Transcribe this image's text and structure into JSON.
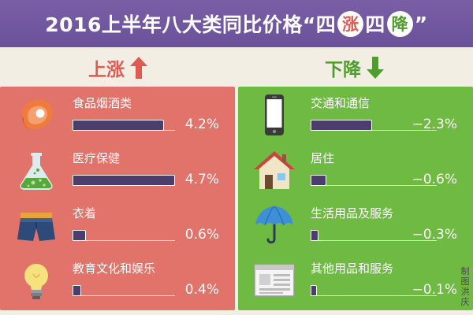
{
  "header": {
    "title_plain": "2016上半年八大类同比价格“四",
    "title_up_char": "涨",
    "title_mid": "四",
    "title_down_char": "降",
    "title_end": "”"
  },
  "sections": {
    "up_label": "上涨",
    "down_label": "下降"
  },
  "colors": {
    "up": "#e2736b",
    "down": "#6fba43",
    "bar": "#4b3e6c",
    "header": "#6a519a"
  },
  "chart_data": {
    "type": "bar",
    "title": "2016上半年八大类同比价格“四涨四降”",
    "unit": "%",
    "groups": [
      {
        "name": "上涨",
        "categories": [
          "食品烟酒类",
          "医疗保健",
          "衣着",
          "教育文化和娱乐"
        ],
        "values": [
          4.2,
          4.7,
          0.6,
          0.4
        ],
        "labels": [
          "4.2%",
          "4.7%",
          "0.6%",
          "0.4%"
        ],
        "icons": [
          "meat-icon",
          "flask-icon",
          "shorts-icon",
          "lightbulb-icon"
        ]
      },
      {
        "name": "下降",
        "categories": [
          "交通和通信",
          "居住",
          "生活用品及服务",
          "其他用品和服务"
        ],
        "values": [
          -2.3,
          -0.6,
          -0.3,
          -0.1
        ],
        "labels": [
          "−2.3%",
          "−0.6%",
          "−0.3%",
          "−0.1%"
        ],
        "icons": [
          "phone-icon",
          "house-icon",
          "umbrella-icon",
          "browser-window-icon"
        ]
      }
    ]
  },
  "credit": "制图 洪庆"
}
